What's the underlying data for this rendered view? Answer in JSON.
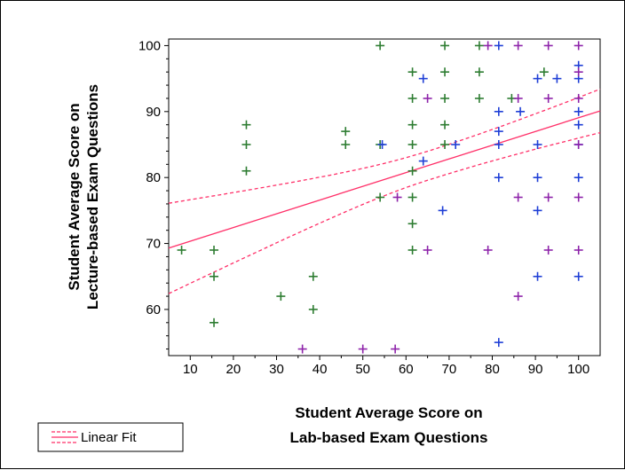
{
  "chart_data": {
    "type": "scatter",
    "title": "",
    "xlabel": [
      "Student Average Score on",
      "Lab-based Exam Questions"
    ],
    "ylabel": [
      "Student Average Score on",
      "Lecture-based Exam Questions"
    ],
    "xlim": [
      5,
      105
    ],
    "ylim": [
      53,
      101
    ],
    "x_ticks": [
      10,
      20,
      30,
      40,
      50,
      60,
      70,
      80,
      90,
      100
    ],
    "y_ticks": [
      60,
      70,
      80,
      90,
      100
    ],
    "grid": false,
    "legend_position": "bottom-left",
    "legend": {
      "label": "Linear Fit"
    },
    "series": [
      {
        "color": "#2e7d32",
        "points": [
          [
            8,
            69
          ],
          [
            15.5,
            69
          ],
          [
            15.5,
            65
          ],
          [
            15.5,
            58
          ],
          [
            23,
            88
          ],
          [
            23,
            85
          ],
          [
            23,
            81
          ],
          [
            31,
            62
          ],
          [
            38.5,
            65
          ],
          [
            38.5,
            60
          ],
          [
            46,
            87
          ],
          [
            46,
            85
          ],
          [
            54,
            100
          ],
          [
            54,
            85
          ],
          [
            54,
            77
          ],
          [
            61.5,
            96
          ],
          [
            61.5,
            92
          ],
          [
            61.5,
            88
          ],
          [
            61.5,
            85
          ],
          [
            61.5,
            81
          ],
          [
            61.5,
            77
          ],
          [
            61.5,
            73
          ],
          [
            61.5,
            69
          ],
          [
            69,
            100
          ],
          [
            69,
            96
          ],
          [
            69,
            92
          ],
          [
            69,
            88
          ],
          [
            69,
            85
          ],
          [
            77,
            100
          ],
          [
            77,
            96
          ],
          [
            77,
            92
          ],
          [
            84.5,
            92
          ],
          [
            92,
            96
          ]
        ]
      },
      {
        "color": "#1f3fd6",
        "points": [
          [
            54.5,
            85
          ],
          [
            64,
            95
          ],
          [
            64,
            82.5
          ],
          [
            68.5,
            75
          ],
          [
            71.5,
            85
          ],
          [
            81.5,
            100
          ],
          [
            81.5,
            90
          ],
          [
            81.5,
            87
          ],
          [
            81.5,
            85
          ],
          [
            81.5,
            80
          ],
          [
            81.5,
            55
          ],
          [
            86.5,
            90
          ],
          [
            90.5,
            95
          ],
          [
            90.5,
            85
          ],
          [
            90.5,
            80
          ],
          [
            90.5,
            75
          ],
          [
            90.5,
            65
          ],
          [
            95,
            95
          ],
          [
            100,
            97
          ],
          [
            100,
            95
          ],
          [
            100,
            90
          ],
          [
            100,
            88
          ],
          [
            100,
            85
          ],
          [
            100,
            80
          ],
          [
            100,
            65
          ]
        ]
      },
      {
        "color": "#8e24aa",
        "points": [
          [
            36,
            54
          ],
          [
            50,
            54
          ],
          [
            57.5,
            54
          ],
          [
            58,
            77
          ],
          [
            65,
            92
          ],
          [
            65,
            69
          ],
          [
            79,
            100
          ],
          [
            79,
            69
          ],
          [
            86,
            100
          ],
          [
            86,
            92
          ],
          [
            86,
            77
          ],
          [
            86,
            62
          ],
          [
            93,
            100
          ],
          [
            93,
            92
          ],
          [
            93,
            77
          ],
          [
            93,
            69
          ],
          [
            100,
            100
          ],
          [
            100,
            96
          ],
          [
            100,
            92
          ],
          [
            100,
            85
          ],
          [
            100,
            77
          ],
          [
            100,
            69
          ]
        ]
      }
    ],
    "fit": {
      "x": [
        5,
        105
      ],
      "line": [
        69.3,
        90.1
      ],
      "upper": [
        76.1,
        93.4
      ],
      "lower": [
        62.4,
        86.8
      ],
      "color": "#ff2f68"
    }
  }
}
